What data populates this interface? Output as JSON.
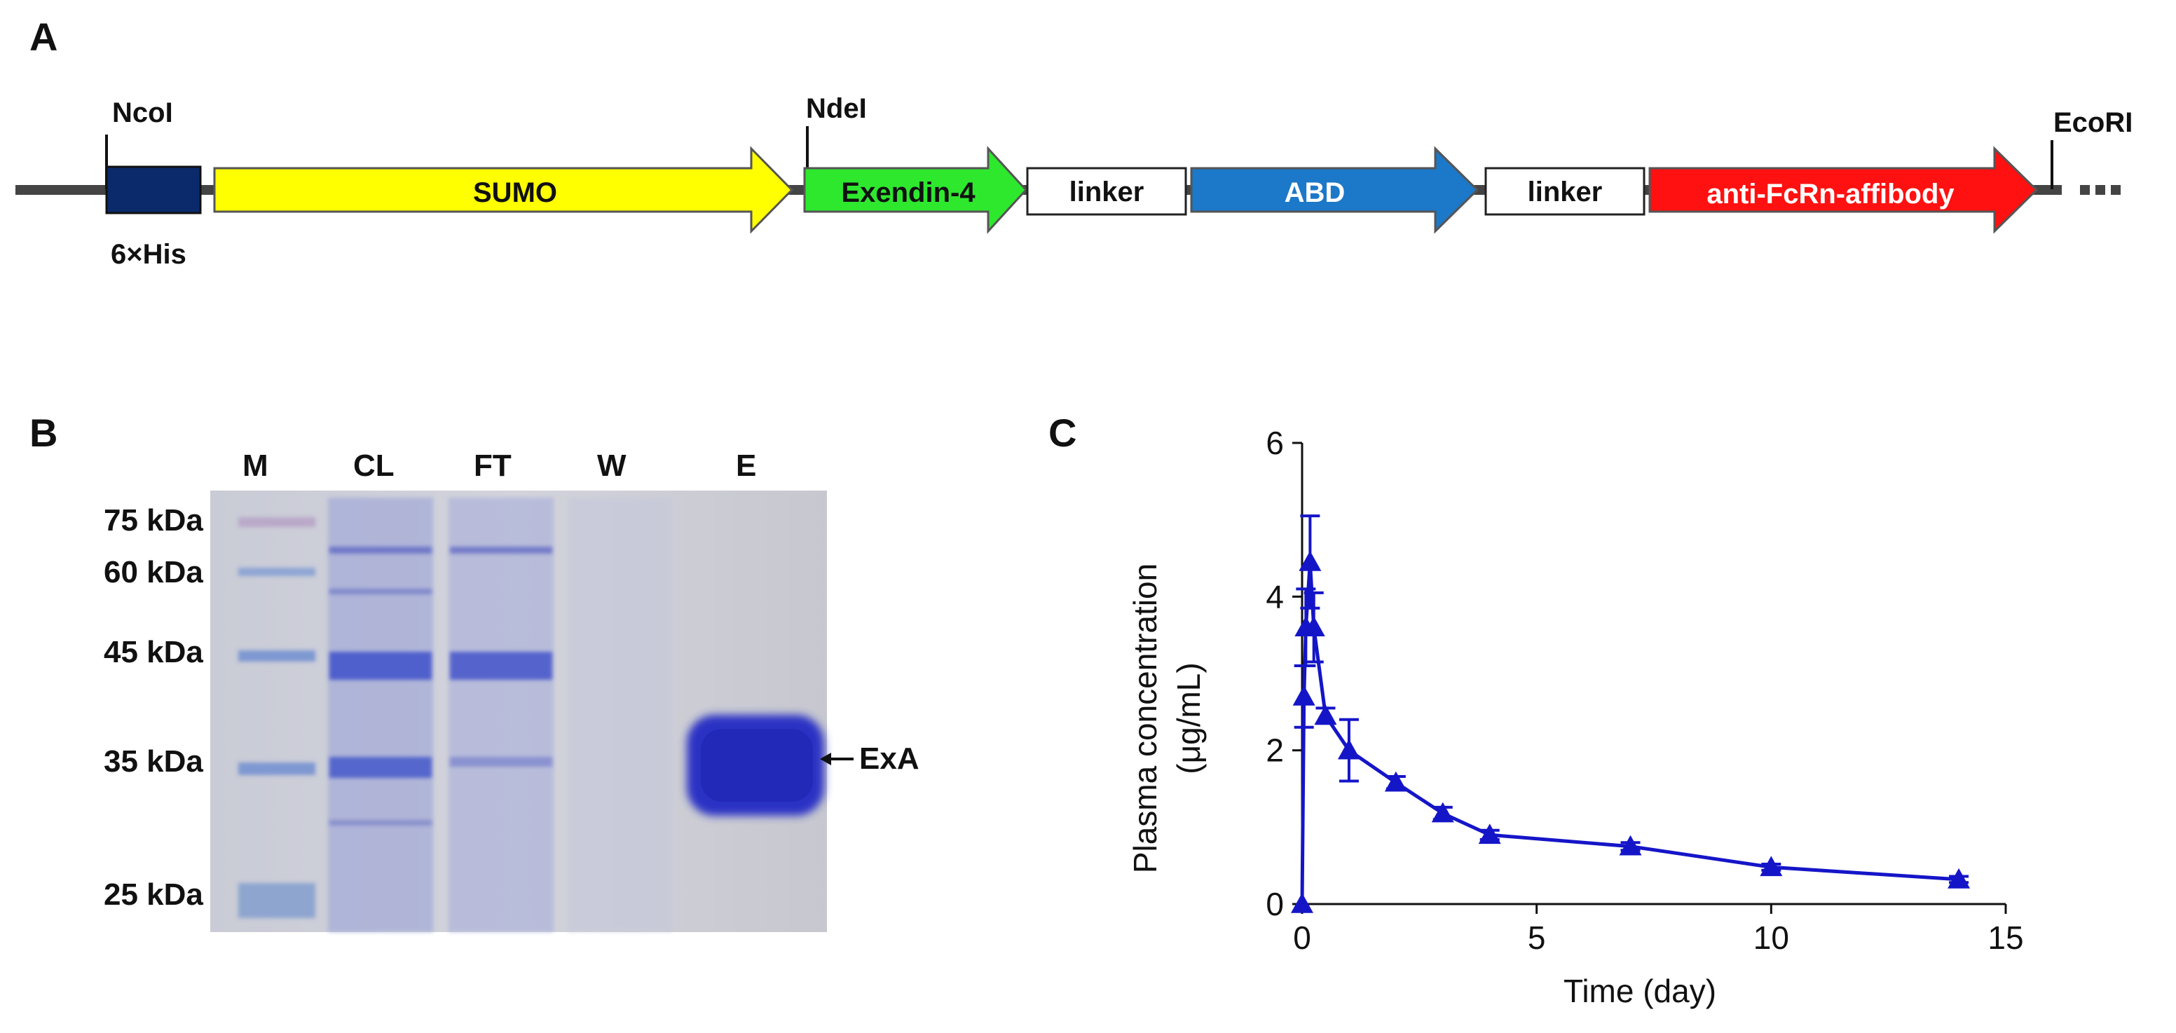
{
  "panels": {
    "a": {
      "letter": "A",
      "restriction_sites": [
        "NcoI",
        "NdeI",
        "EcoRI"
      ],
      "tag_label": "6×His",
      "segments": {
        "sumo": "SUMO",
        "exendin": "Exendin-4",
        "linker1": "linker",
        "abd": "ABD",
        "linker2": "linker",
        "affibody": "anti-FcRn-affibody"
      },
      "colors": {
        "his": "#0a2a6b",
        "sumo": "#ffff00",
        "exendin": "#2ee82e",
        "abd": "#1c78c8",
        "affibody": "#ff1111",
        "backbone": "#444444"
      }
    },
    "b": {
      "letter": "B",
      "lanes": [
        "M",
        "CL",
        "FT",
        "W",
        "E"
      ],
      "markers": [
        "75 kDa",
        "60 kDa",
        "45 kDa",
        "35 kDa",
        "25 kDa"
      ],
      "band_label": "ExA"
    },
    "c": {
      "letter": "C"
    }
  },
  "chart_data": {
    "type": "line",
    "xlabel": "Time (day)",
    "ylabel": "Plasma concentration",
    "ylabel_unit": "(μg/mL)",
    "xlim": [
      0,
      15
    ],
    "ylim": [
      0,
      6
    ],
    "xticks": [
      "0",
      "5",
      "10",
      "15"
    ],
    "yticks": [
      "0",
      "2",
      "4",
      "6"
    ],
    "grid": false,
    "color": "#1515c8",
    "series": [
      {
        "x": [
          0,
          0.04,
          0.08,
          0.17,
          0.25,
          0.5,
          1,
          2,
          3,
          4,
          7,
          10,
          14
        ],
        "y": [
          0,
          2.7,
          3.6,
          4.45,
          3.6,
          2.45,
          2.0,
          1.58,
          1.18,
          0.9,
          0.75,
          0.48,
          0.32
        ],
        "err": [
          0,
          0.4,
          0.5,
          0.6,
          0.45,
          0.1,
          0.4,
          0.08,
          0.08,
          0.06,
          0.05,
          0.04,
          0.04
        ]
      }
    ]
  }
}
